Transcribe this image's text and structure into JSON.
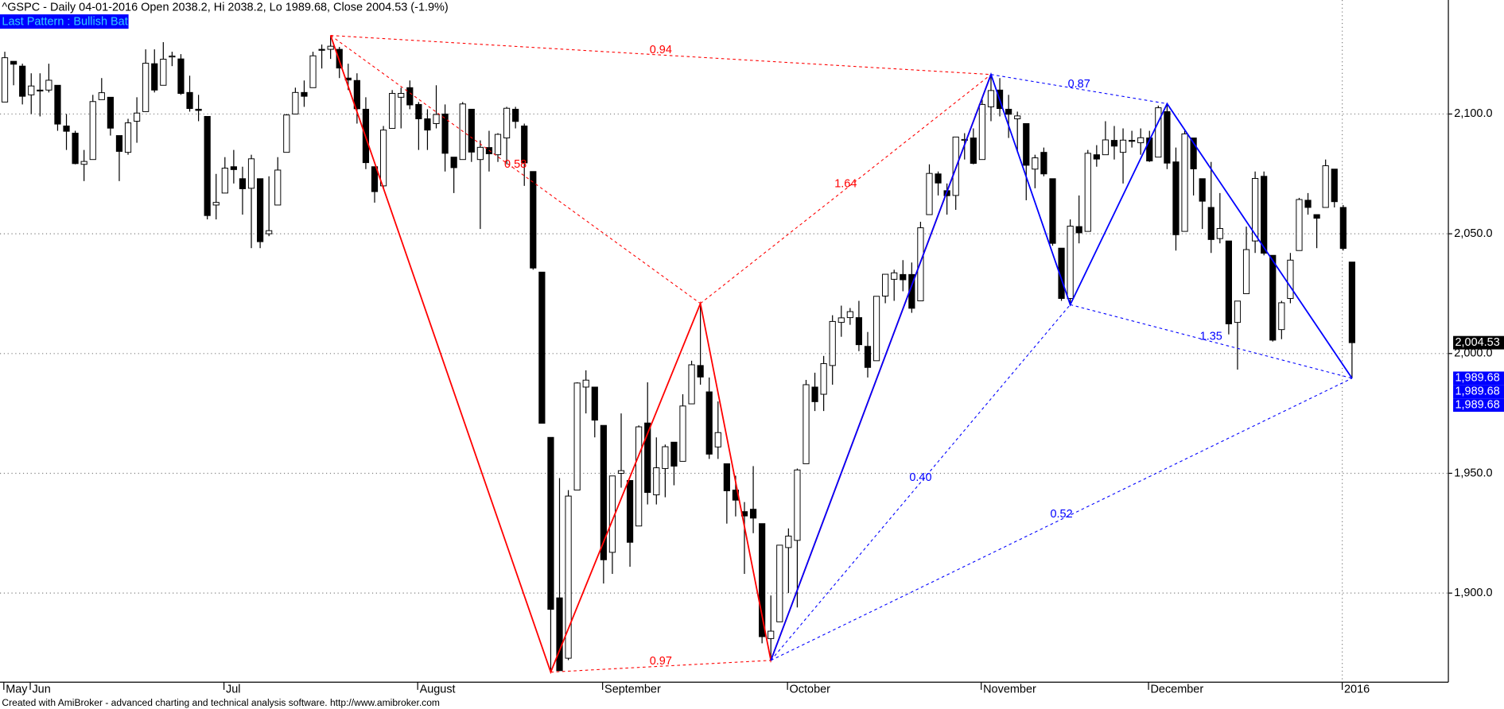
{
  "chart_data": {
    "type": "candlestick",
    "title": "^GSPC - Daily 04-01-2016 Open 2038.2, Hi 2038.2, Lo 1989.68, Close 2004.53 (-1.9%)",
    "subtitle": "Last Pattern : Bullish Bat",
    "footer": "Created with AmiBroker - advanced charting and technical analysis software. http://www.amibroker.com",
    "categories": [
      "May",
      null,
      null,
      "Jun",
      null,
      null,
      null,
      null,
      null,
      null,
      null,
      null,
      null,
      null,
      null,
      null,
      null,
      null,
      null,
      null,
      null,
      null,
      null,
      null,
      null,
      "Jul",
      null,
      null,
      null,
      null,
      null,
      null,
      null,
      null,
      null,
      null,
      null,
      null,
      null,
      null,
      null,
      null,
      null,
      null,
      null,
      null,
      null,
      "August",
      null,
      null,
      null,
      null,
      null,
      null,
      null,
      null,
      null,
      null,
      null,
      null,
      null,
      null,
      null,
      null,
      null,
      null,
      null,
      null,
      "September",
      null,
      null,
      null,
      null,
      null,
      null,
      null,
      null,
      null,
      null,
      null,
      null,
      null,
      null,
      null,
      null,
      null,
      null,
      null,
      null,
      "October",
      null,
      null,
      null,
      null,
      null,
      null,
      null,
      null,
      null,
      null,
      null,
      null,
      null,
      null,
      null,
      null,
      null,
      null,
      null,
      null,
      null,
      "November",
      null,
      null,
      null,
      null,
      null,
      null,
      null,
      null,
      null,
      null,
      null,
      null,
      null,
      null,
      null,
      null,
      null,
      null,
      "December",
      null,
      null,
      null,
      null,
      null,
      null,
      null,
      null,
      null,
      null,
      null,
      null,
      null,
      null,
      null,
      null,
      null,
      null,
      null,
      null,
      null,
      "2016"
    ],
    "candles": [
      [
        2105,
        2126,
        2105,
        2123.5
      ],
      [
        2122,
        2122,
        2112,
        2120.8
      ],
      [
        2120,
        2121,
        2104,
        2107.4
      ],
      [
        2108,
        2117,
        2100,
        2111.7
      ],
      [
        2110,
        2117,
        2099,
        2109.6
      ],
      [
        2110,
        2121,
        2109,
        2114.1
      ],
      [
        2112,
        2112,
        2093,
        2095.8
      ],
      [
        2095,
        2100,
        2085,
        2092.8
      ],
      [
        2092,
        2093,
        2079,
        2079.3
      ],
      [
        2079,
        2085,
        2072,
        2080.2
      ],
      [
        2081,
        2108,
        2081,
        2105.2
      ],
      [
        2106,
        2115,
        2106,
        2108.9
      ],
      [
        2107,
        2107,
        2091,
        2094.1
      ],
      [
        2091,
        2091,
        2072,
        2084.4
      ],
      [
        2084,
        2098,
        2083,
        2096.3
      ],
      [
        2097,
        2107,
        2088,
        2100.4
      ],
      [
        2101,
        2127,
        2101,
        2121.2
      ],
      [
        2121,
        2127,
        2109,
        2110
      ],
      [
        2112,
        2130,
        2112,
        2122.9
      ],
      [
        2124,
        2126,
        2120,
        2124.2
      ],
      [
        2123,
        2125,
        2108,
        2108.6
      ],
      [
        2109,
        2116,
        2101,
        2102.3
      ],
      [
        2102,
        2108,
        2097,
        2101.5
      ],
      [
        2099,
        2099,
        2056,
        2057.6
      ],
      [
        2062,
        2075,
        2056,
        2063.1
      ],
      [
        2067,
        2082,
        2067,
        2077.4
      ],
      [
        2078,
        2085,
        2071,
        2076.8
      ],
      [
        2073,
        2078,
        2058,
        2068.8
      ],
      [
        2069,
        2083,
        2044,
        2081.3
      ],
      [
        2073,
        2073,
        2044,
        2046.7
      ],
      [
        2050,
        2074,
        2049,
        2051.3
      ],
      [
        2062,
        2082,
        2062,
        2076.6
      ],
      [
        2084,
        2100,
        2084,
        2099.6
      ],
      [
        2100,
        2111,
        2100,
        2109
      ],
      [
        2109,
        2114,
        2103,
        2107.4
      ],
      [
        2111,
        2126,
        2111,
        2124.3
      ],
      [
        2127,
        2129,
        2119,
        2126.6
      ],
      [
        2127,
        2132.8,
        2123,
        2128.3
      ],
      [
        2127,
        2128,
        2115,
        2119.2
      ],
      [
        2115,
        2121,
        2110,
        2114.2
      ],
      [
        2114,
        2117,
        2096,
        2102.2
      ],
      [
        2102,
        2107,
        2077,
        2079.7
      ],
      [
        2078,
        2078,
        2063,
        2067.6
      ],
      [
        2070,
        2095,
        2069,
        2093.3
      ],
      [
        2094,
        2110,
        2094,
        2108.6
      ],
      [
        2107,
        2111,
        2094,
        2108.6
      ],
      [
        2111,
        2114,
        2102,
        2103.8
      ],
      [
        2104,
        2105,
        2085,
        2098
      ],
      [
        2098,
        2102,
        2085,
        2093.3
      ],
      [
        2096,
        2112,
        2094,
        2099.8
      ],
      [
        2100,
        2104,
        2076,
        2083.6
      ],
      [
        2082,
        2082,
        2067,
        2077.6
      ],
      [
        2081,
        2105,
        2081,
        2104.2
      ],
      [
        2102,
        2102,
        2080,
        2084.1
      ],
      [
        2081,
        2089,
        2052,
        2086.1
      ],
      [
        2086,
        2093,
        2076,
        2083.4
      ],
      [
        2083,
        2092,
        2080,
        2091.5
      ],
      [
        2090,
        2103,
        2079,
        2102.4
      ],
      [
        2102,
        2103,
        2094,
        2096.9
      ],
      [
        2095,
        2096,
        2070,
        2079.6
      ],
      [
        2076,
        2076,
        2035,
        2035.7
      ],
      [
        2034,
        2034,
        1970.9,
        1970.9
      ],
      [
        1965,
        1965,
        1867,
        1893.2
      ],
      [
        1898,
        1948,
        1867.5,
        1867.6
      ],
      [
        1872.8,
        1943,
        1872,
        1940.5
      ],
      [
        1943,
        1988,
        1943,
        1987.7
      ],
      [
        1986,
        1993,
        1975,
        1988.9
      ],
      [
        1986,
        1986,
        1965,
        1972.2
      ],
      [
        1970,
        1970,
        1904,
        1913.9
      ],
      [
        1917,
        1949,
        1908,
        1948.9
      ],
      [
        1950,
        1975,
        1944,
        1951.1
      ],
      [
        1947,
        1947,
        1911,
        1921.2
      ],
      [
        1928,
        1970,
        1928,
        1969.4
      ],
      [
        1971,
        1988,
        1937,
        1942
      ],
      [
        1941,
        1965,
        1937,
        1952.3
      ],
      [
        1952,
        1962,
        1940,
        1961.1
      ],
      [
        1963,
        1963,
        1945,
        1953
      ],
      [
        1955,
        1983,
        1955,
        1978.1
      ],
      [
        1979,
        1997,
        1979,
        1995.3
      ],
      [
        1995,
        2020.9,
        1987,
        1990.2
      ],
      [
        1984,
        1990,
        1956,
        1958
      ],
      [
        1961,
        1980,
        1956,
        1967
      ],
      [
        1954,
        1954,
        1929,
        1942.7
      ],
      [
        1943,
        1949,
        1932,
        1938.8
      ],
      [
        1934,
        1938,
        1908,
        1932.2
      ],
      [
        1935,
        1953,
        1925,
        1931.3
      ],
      [
        1929,
        1929,
        1879,
        1881.8
      ],
      [
        1881,
        1899,
        1871.9,
        1884.1
      ],
      [
        1888,
        1920,
        1888,
        1920
      ],
      [
        1919,
        1927,
        1900,
        1923.8
      ],
      [
        1922,
        1952,
        1894,
        1951.4
      ],
      [
        1954,
        1989,
        1954,
        1987
      ],
      [
        1986,
        1992,
        1976,
        1979.9
      ],
      [
        1983,
        1999,
        1976,
        1995.8
      ],
      [
        1995,
        2016,
        1987,
        2013.4
      ],
      [
        2013,
        2020,
        2007,
        2014.9
      ],
      [
        2015,
        2019,
        2012,
        2017.5
      ],
      [
        2015,
        2022,
        2001,
        2003.7
      ],
      [
        2003,
        2009,
        1990,
        1994.2
      ],
      [
        1997,
        2024,
        1997,
        2023.9
      ],
      [
        2024,
        2033,
        2021,
        2033.1
      ],
      [
        2031,
        2035,
        2022,
        2033.7
      ],
      [
        2033,
        2039,
        2026,
        2030.8
      ],
      [
        2033,
        2038,
        2017,
        2018.9
      ],
      [
        2022,
        2055,
        2022,
        2052.5
      ],
      [
        2058,
        2079,
        2058,
        2075.2
      ],
      [
        2075,
        2076,
        2066,
        2071.2
      ],
      [
        2068,
        2071,
        2058,
        2065.9
      ],
      [
        2066,
        2090,
        2060,
        2090.4
      ],
      [
        2089,
        2092,
        2081,
        2089.4
      ],
      [
        2090,
        2094,
        2079,
        2079.4
      ],
      [
        2081,
        2106,
        2081,
        2104
      ],
      [
        2103,
        2116.5,
        2097,
        2109.8
      ],
      [
        2110,
        2115,
        2099,
        2102.3
      ],
      [
        2102,
        2108,
        2090,
        2099.9
      ],
      [
        2098,
        2101,
        2084,
        2099.2
      ],
      [
        2096,
        2096,
        2064,
        2078.6
      ],
      [
        2077,
        2083,
        2069,
        2081.7
      ],
      [
        2084,
        2086,
        2074,
        2075
      ],
      [
        2073,
        2073,
        2045,
        2046
      ],
      [
        2044,
        2044,
        2022,
        2023
      ],
      [
        2023,
        2056,
        2020.4,
        2053.2
      ],
      [
        2053,
        2066,
        2046,
        2050.4
      ],
      [
        2051,
        2085,
        2051,
        2083.6
      ],
      [
        2083,
        2087,
        2078,
        2081.2
      ],
      [
        2083,
        2097,
        2083,
        2089.2
      ],
      [
        2089,
        2095,
        2081,
        2086.6
      ],
      [
        2084,
        2094,
        2071,
        2089.1
      ],
      [
        2089,
        2093,
        2086,
        2088.9
      ],
      [
        2088,
        2094,
        2083,
        2090.1
      ],
      [
        2090,
        2093,
        2080,
        2080.4
      ],
      [
        2082,
        2103.5,
        2082,
        2102.6
      ],
      [
        2101,
        2104.3,
        2077,
        2079.5
      ],
      [
        2080,
        2086,
        2043,
        2049.6
      ],
      [
        2051,
        2093,
        2051,
        2091.7
      ],
      [
        2090,
        2090,
        2066,
        2077.1
      ],
      [
        2073,
        2073,
        2052,
        2063.6
      ],
      [
        2061,
        2080,
        2042,
        2047.6
      ],
      [
        2048,
        2067,
        2046,
        2052.2
      ],
      [
        2047,
        2047,
        2008,
        2012.4
      ],
      [
        2013,
        2022,
        1993.3,
        2021.9
      ],
      [
        2025,
        2053,
        2025,
        2043.4
      ],
      [
        2047,
        2076,
        2042,
        2073.1
      ],
      [
        2074,
        2076,
        2041,
        2041.9
      ],
      [
        2041,
        2041,
        2005,
        2005.6
      ],
      [
        2010,
        2022,
        2006,
        2021.2
      ],
      [
        2023,
        2042,
        2021,
        2039
      ],
      [
        2043,
        2065,
        2043,
        2064.3
      ],
      [
        2064,
        2067,
        2058,
        2061
      ],
      [
        2058,
        2058,
        2044,
        2056.5
      ],
      [
        2061,
        2081,
        2061,
        2078.4
      ],
      [
        2077,
        2077,
        2061,
        2063.4
      ],
      [
        2061,
        2062,
        2043,
        2043.9
      ],
      [
        2038.2,
        2038.2,
        1989.68,
        2004.53
      ]
    ],
    "ylim": [
      1862.8,
      2147.6
    ],
    "yticks": [
      {
        "value": 1900,
        "label": "1,900.0"
      },
      {
        "value": 1950,
        "label": "1,950.0"
      },
      {
        "value": 2000,
        "label": "2,000.0"
      },
      {
        "value": 2050,
        "label": "2,050.0"
      },
      {
        "value": 2100,
        "label": "2,100.0"
      }
    ],
    "grid": true,
    "price_labels": [
      {
        "value": 2004.53,
        "label": "2,004.53",
        "color": "#000000"
      },
      {
        "value": 1989.68,
        "label": "1,989.68",
        "color": "#0000ff"
      },
      {
        "value": 1989.68,
        "label": "1,989.68",
        "color": "#0000ff"
      },
      {
        "value": 1989.68,
        "label": "1,989.68",
        "color": "#0000ff"
      }
    ],
    "patterns": [
      {
        "color": "#ff0000",
        "points": [
          2132.8,
          1867,
          2020.9,
          1871.9,
          2116.5
        ],
        "ratios": [
          0.58,
          0.97,
          1.64,
          0.94
        ]
      },
      {
        "color": "#0000ff",
        "points": [
          1871.9,
          2116.5,
          2020.4,
          2104.3,
          1989.68
        ],
        "ratios": [
          {
            "value": 0.4,
            "label": "0.40"
          },
          0.87,
          1.35,
          0.52
        ]
      }
    ]
  }
}
